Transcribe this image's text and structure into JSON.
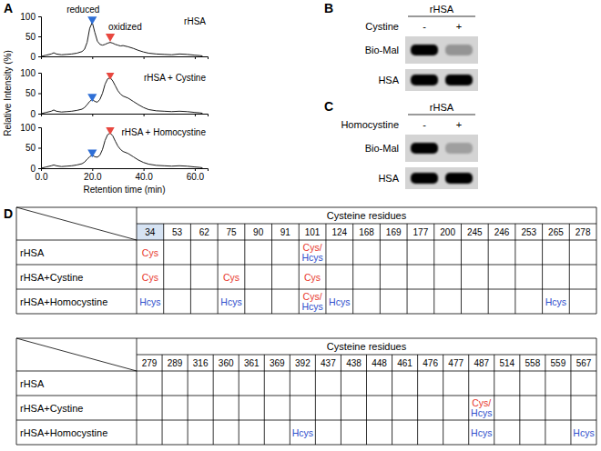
{
  "panel_labels": [
    "A",
    "B",
    "C",
    "D"
  ],
  "chart_data": [
    {
      "type": "line",
      "title": "rHSA",
      "color": "#1a1a1a",
      "x": [
        0,
        2,
        4,
        5,
        6,
        8,
        10,
        12,
        14,
        16,
        17,
        18,
        19,
        20,
        21,
        22,
        23,
        24,
        25,
        26,
        27,
        28,
        29,
        30,
        31,
        32,
        34,
        36,
        38,
        40,
        42,
        45,
        48,
        51,
        54,
        57,
        60,
        62,
        63
      ],
      "values": [
        0,
        3,
        6,
        9,
        6,
        4,
        5,
        6,
        8,
        12,
        18,
        35,
        70,
        85,
        60,
        38,
        30,
        28,
        30,
        33,
        35,
        33,
        30,
        28,
        26,
        27,
        24,
        20,
        15,
        11,
        8,
        6,
        5,
        4,
        6,
        5,
        3,
        2,
        1
      ],
      "xlim": [
        0,
        65
      ],
      "ylim": [
        0,
        100
      ],
      "xticks": [
        0,
        20,
        40,
        60
      ],
      "yticks": [
        0,
        50,
        100
      ],
      "tick_labels": "y",
      "peaks": [
        {
          "label": "reduced",
          "x": 20,
          "y": 93,
          "color": "#2f6fd6"
        },
        {
          "label": "oxidized",
          "x": 27,
          "y": 50,
          "color": "#e8473f"
        }
      ]
    },
    {
      "type": "line",
      "title": "rHSA + Cystine",
      "y_label": "Relative Intensity (%)",
      "color": "#1a1a1a",
      "x": [
        0,
        2,
        4,
        5,
        6,
        8,
        10,
        12,
        14,
        16,
        17,
        18,
        19,
        20,
        21,
        22,
        23,
        24,
        25,
        26,
        27,
        28,
        29,
        30,
        31,
        32,
        34,
        36,
        38,
        40,
        42,
        45,
        48,
        51,
        54,
        57,
        60,
        62,
        63
      ],
      "values": [
        0,
        3,
        6,
        9,
        6,
        4,
        5,
        6,
        8,
        11,
        15,
        22,
        30,
        35,
        30,
        28,
        35,
        50,
        72,
        85,
        88,
        80,
        68,
        56,
        48,
        43,
        38,
        30,
        22,
        15,
        10,
        7,
        6,
        5,
        6,
        5,
        3,
        2,
        1
      ],
      "xlim": [
        0,
        65
      ],
      "ylim": [
        0,
        100
      ],
      "xticks": [
        0,
        20,
        40,
        60
      ],
      "yticks": [
        0,
        50,
        100
      ],
      "tick_labels": "y",
      "peaks": [
        {
          "x": 20,
          "y": 42,
          "color": "#2f6fd6"
        },
        {
          "x": 27,
          "y": 96,
          "color": "#e8473f"
        }
      ]
    },
    {
      "type": "line",
      "title": "rHSA + Homocystine",
      "x_label": "Retention time (min)",
      "color": "#1a1a1a",
      "x": [
        0,
        2,
        4,
        5,
        6,
        8,
        10,
        12,
        14,
        16,
        17,
        18,
        19,
        20,
        21,
        22,
        23,
        24,
        25,
        26,
        27,
        28,
        29,
        30,
        31,
        32,
        34,
        36,
        38,
        40,
        42,
        45,
        48,
        51,
        54,
        57,
        60,
        62,
        63
      ],
      "values": [
        0,
        3,
        6,
        8,
        6,
        4,
        5,
        6,
        8,
        11,
        15,
        22,
        28,
        32,
        28,
        27,
        32,
        46,
        68,
        82,
        86,
        79,
        66,
        54,
        46,
        41,
        36,
        28,
        20,
        14,
        10,
        7,
        6,
        5,
        6,
        5,
        3,
        2,
        1
      ],
      "xlim": [
        0,
        65
      ],
      "ylim": [
        0,
        100
      ],
      "xticks": [
        {
          "value": 0,
          "label": "0.0"
        },
        {
          "value": 20,
          "label": "20.0"
        },
        {
          "value": 40,
          "label": "40.0"
        },
        {
          "value": 60,
          "label": "60.0"
        }
      ],
      "yticks": [
        0,
        50,
        100
      ],
      "peaks": [
        {
          "x": 20,
          "y": 39,
          "color": "#2f6fd6"
        },
        {
          "x": 27,
          "y": 95,
          "color": "#e8473f"
        }
      ]
    }
  ],
  "blots": [
    {
      "header": "rHSA",
      "treatment": "Cystine",
      "lanes": [
        "-",
        "+"
      ],
      "rows": [
        {
          "label": "Bio-Mal",
          "intensity": [
            1,
            0.3
          ]
        },
        {
          "label": "HSA",
          "intensity": [
            1,
            1
          ]
        }
      ]
    },
    {
      "header": "rHSA",
      "treatment": "Homocystine",
      "lanes": [
        "-",
        "+"
      ],
      "rows": [
        {
          "label": "Bio-Mal",
          "intensity": [
            1,
            0.25
          ]
        },
        {
          "label": "HSA",
          "intensity": [
            1,
            1
          ]
        }
      ]
    }
  ],
  "table": {
    "header": "Cysteine residues",
    "parts": [
      {
        "columns": [
          34,
          53,
          62,
          75,
          90,
          91,
          101,
          124,
          168,
          169,
          177,
          200,
          245,
          246,
          253,
          265,
          278
        ],
        "highlight_columns": [
          34
        ],
        "rows": [
          {
            "label": "rHSA",
            "cells": [
              [
                {
                  "text": "Cys",
                  "color": "#e8392e"
                }
              ],
              null,
              null,
              null,
              null,
              null,
              [
                {
                  "text": "Cys/",
                  "color": "#e8392e"
                },
                {
                  "text": "Hcys",
                  "color": "#2f4fcc"
                }
              ],
              null,
              null,
              null,
              null,
              null,
              null,
              null,
              null,
              null,
              null
            ]
          },
          {
            "label": "rHSA+Cystine",
            "cells": [
              [
                {
                  "text": "Cys",
                  "color": "#e8392e"
                }
              ],
              null,
              null,
              [
                {
                  "text": "Cys",
                  "color": "#e8392e"
                }
              ],
              null,
              null,
              [
                {
                  "text": "Cys",
                  "color": "#e8392e"
                }
              ],
              null,
              null,
              null,
              null,
              null,
              null,
              null,
              null,
              null,
              null
            ]
          },
          {
            "label": "rHSA+Homocystine",
            "cells": [
              [
                {
                  "text": "Hcys",
                  "color": "#2f4fcc"
                }
              ],
              null,
              null,
              [
                {
                  "text": "Hcys",
                  "color": "#2f4fcc"
                }
              ],
              null,
              null,
              [
                {
                  "text": "Cys/",
                  "color": "#e8392e"
                },
                {
                  "text": "Hcys",
                  "color": "#2f4fcc"
                }
              ],
              [
                {
                  "text": "Hcys",
                  "color": "#2f4fcc"
                }
              ],
              null,
              null,
              null,
              null,
              null,
              null,
              null,
              [
                {
                  "text": "Hcys",
                  "color": "#2f4fcc"
                }
              ],
              null
            ]
          }
        ]
      },
      {
        "columns": [
          279,
          289,
          316,
          360,
          361,
          369,
          392,
          437,
          438,
          448,
          461,
          476,
          477,
          487,
          514,
          558,
          559,
          567
        ],
        "rows": [
          {
            "label": "rHSA",
            "cells": [
              null,
              null,
              null,
              null,
              null,
              null,
              null,
              null,
              null,
              null,
              null,
              null,
              null,
              null,
              null,
              null,
              null,
              null
            ]
          },
          {
            "label": "rHSA+Cystine",
            "cells": [
              null,
              null,
              null,
              null,
              null,
              null,
              null,
              null,
              null,
              null,
              null,
              null,
              null,
              [
                {
                  "text": "Cys/",
                  "color": "#e8392e"
                },
                {
                  "text": "Hcys",
                  "color": "#2f4fcc"
                }
              ],
              null,
              null,
              null,
              null
            ]
          },
          {
            "label": "rHSA+Homocystine",
            "cells": [
              null,
              null,
              null,
              null,
              null,
              null,
              [
                {
                  "text": "Hcys",
                  "color": "#2f4fcc"
                }
              ],
              null,
              null,
              null,
              null,
              null,
              null,
              [
                {
                  "text": "Hcys",
                  "color": "#2f4fcc"
                }
              ],
              null,
              null,
              null,
              [
                {
                  "text": "Hcys",
                  "color": "#2f4fcc"
                }
              ]
            ]
          }
        ]
      }
    ]
  }
}
